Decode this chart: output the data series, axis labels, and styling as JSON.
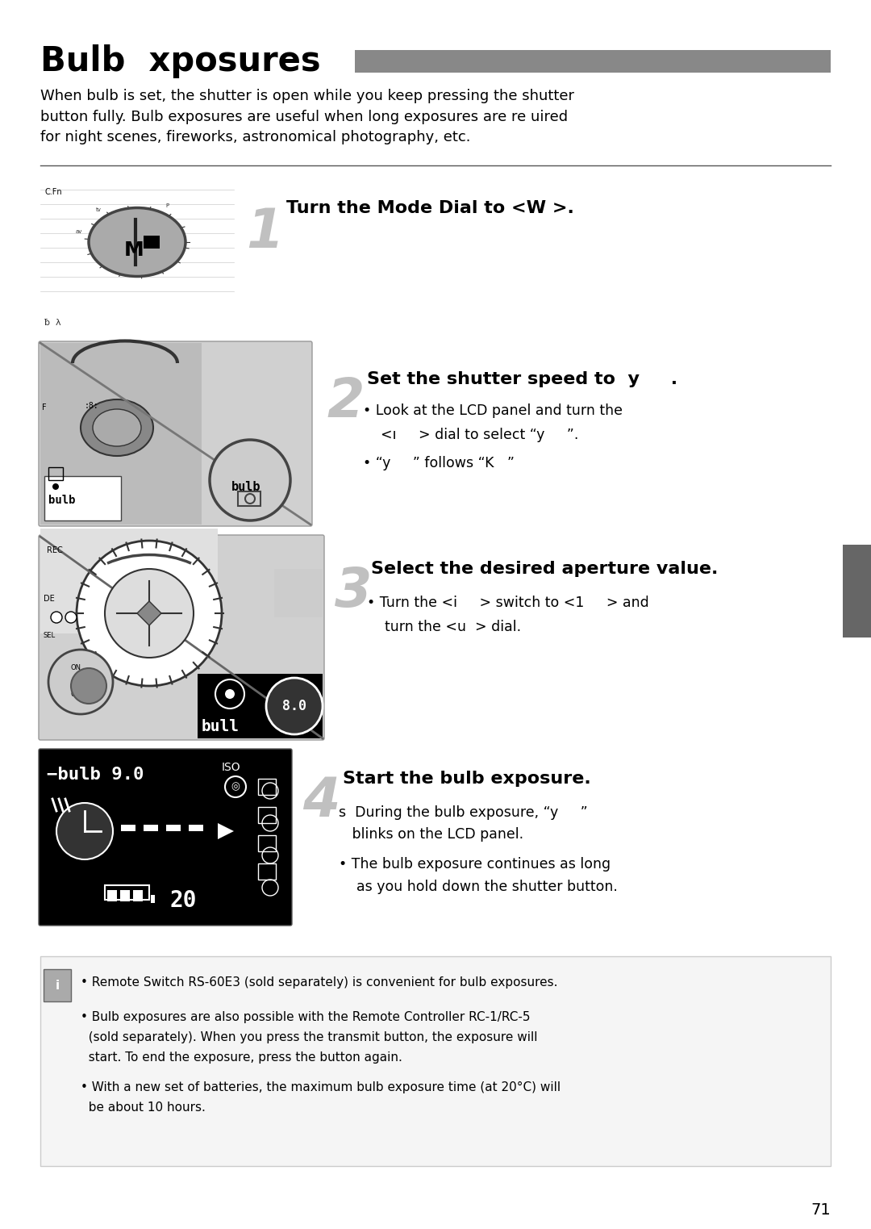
{
  "title": "Bulb  xposures",
  "title_bar_color": "#888888",
  "intro_text": "When bulb is set, the shutter is open while you keep pressing the shutter\nbutton fully. Bulb exposures are useful when long exposures are re uired\nfor night scenes, fireworks, astronomical photography, etc.",
  "step1_title": "Turn the Mode Dial to <W >.",
  "step2_title": "Set the shutter speed to  y     .",
  "step2_b1": "Look at the LCD panel and turn the",
  "step2_b1b": "  <ı     > dial to select “y     ”.",
  "step2_b2": "“y     ” follows “K   ”",
  "step3_title": "Select the desired aperture value.",
  "step3_b1": "Turn the <i     > switch to <1     > and",
  "step3_b1b": "  turn the <u  > dial.",
  "step4_title": "Start the bulb exposure.",
  "step4_sub": "s  During the bulb exposure, “y     ”",
  "step4_sub2": "   blinks on the LCD panel.",
  "step4_b1": "The bulb exposure continues as long",
  "step4_b1b": "  as you hold down the shutter button.",
  "note_b1": "Remote Switch RS-60E3 (sold separately) is convenient for bulb exposures.",
  "note_b2a": "Bulb exposures are also possible with the Remote Controller RC-1/RC-5",
  "note_b2b": "(sold separately). When you press the transmit button, the exposure will",
  "note_b2c": "start. To end the exposure, press the button again.",
  "note_b3a": "With a new set of batteries, the maximum bulb exposure time (at 20°C) will",
  "note_b3b": "be about 10 hours.",
  "page_number": "71",
  "bg_color": "#ffffff",
  "text_color": "#000000",
  "gray_color": "#888888",
  "light_gray": "#cccccc",
  "dark_gray": "#555555",
  "side_bar_color": "#666666"
}
